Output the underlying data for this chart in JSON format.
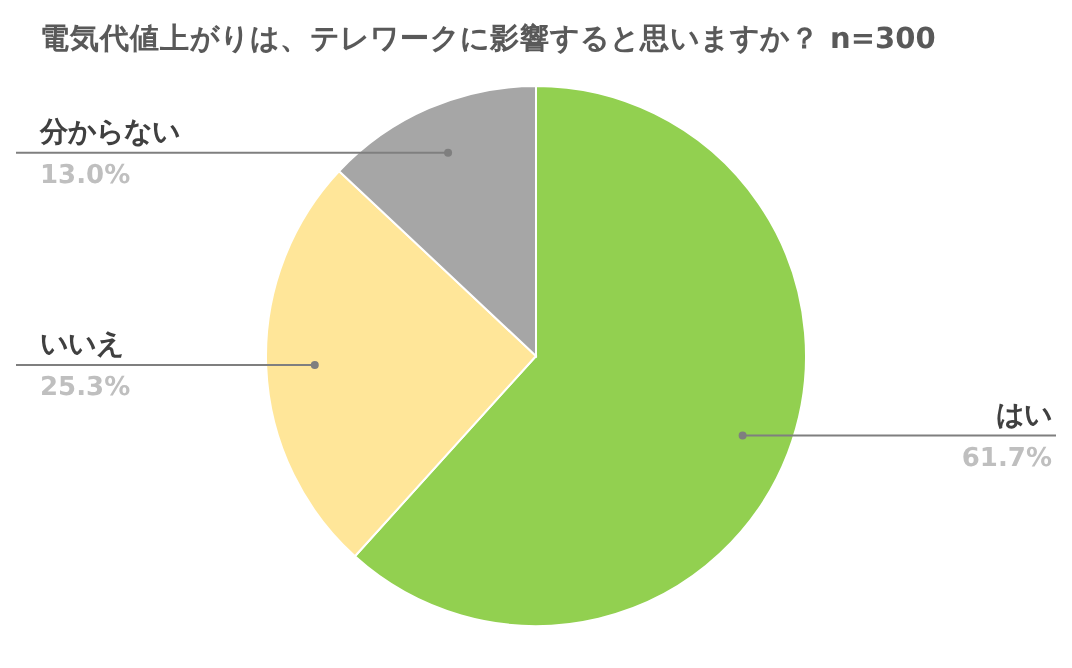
{
  "chart_data": {
    "type": "pie",
    "title": "電気代値上がりは、テレワークに影響すると思いますか？ n=300",
    "categories": [
      "はい",
      "いいえ",
      "分からない"
    ],
    "values": [
      61.7,
      25.3,
      13.0
    ],
    "value_labels": [
      "61.7%",
      "25.3%",
      "13.0%"
    ],
    "colors": [
      "#92d050",
      "#ffe699",
      "#a6a6a6"
    ],
    "legend": false
  }
}
